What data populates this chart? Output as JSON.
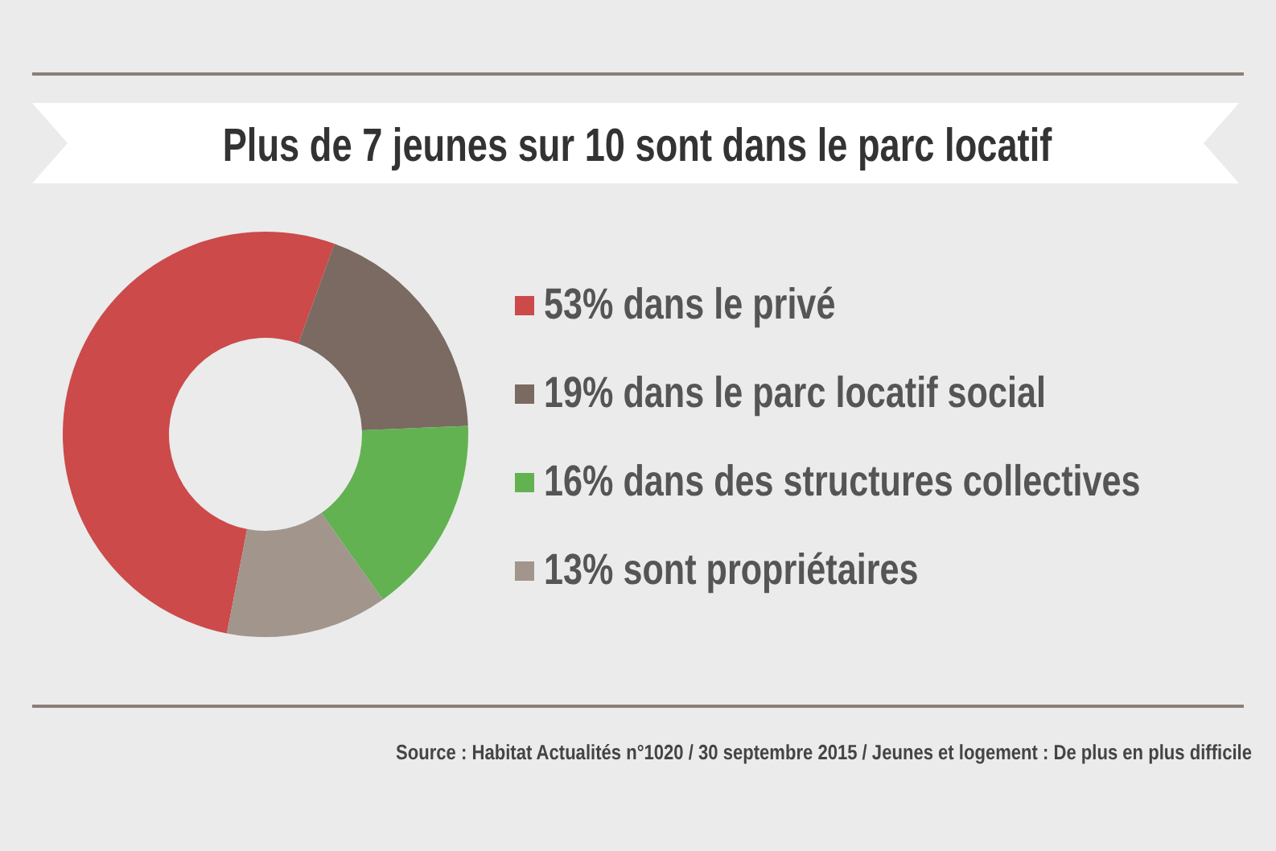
{
  "chart_data": {
    "type": "donut",
    "title": "Plus de 7 jeunes sur 10 sont dans le parc locatif",
    "categories": [
      "dans le privé",
      "dans le parc locatif social",
      "dans des structures collectives",
      "sont propriétaires"
    ],
    "values": [
      53,
      19,
      16,
      13
    ],
    "value_labels": [
      "53%",
      "19%",
      "16%",
      "13%"
    ],
    "colors": [
      "#cc4a4a",
      "#7a6a62",
      "#62b251",
      "#a2958c"
    ],
    "legend": "right",
    "annotations": [
      "Source : Habitat Actualités n°1020 / 30 septembre 2015 / Jeunes et logement : De plus en plus difficile"
    ]
  }
}
